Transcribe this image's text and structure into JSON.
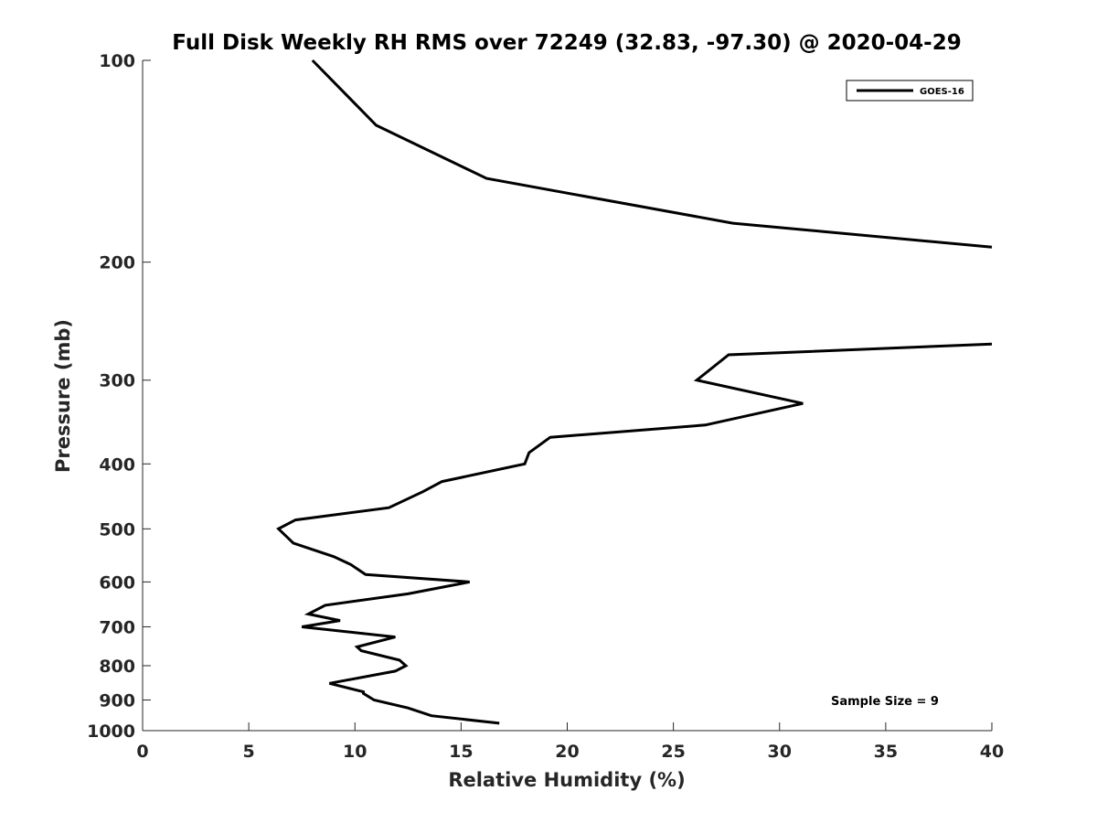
{
  "chart_data": {
    "type": "line",
    "title": "Full Disk Weekly RH RMS over 72249 (32.83, -97.30) @ 2020-04-29",
    "xlabel": "Relative Humidity (%)",
    "ylabel": "Pressure (mb)",
    "xlim": [
      0,
      40
    ],
    "ylim": [
      100,
      1000
    ],
    "y_scale": "log",
    "y_reversed": true,
    "x_ticks": [
      "0",
      "5",
      "10",
      "15",
      "20",
      "25",
      "30",
      "35",
      "40"
    ],
    "y_ticks": [
      "100",
      "200",
      "300",
      "400",
      "500",
      "600",
      "700",
      "800",
      "900",
      "1000"
    ],
    "grid": false,
    "legend_position": "top-right",
    "annotation": "Sample Size = 9",
    "series": [
      {
        "name": "GOES-16",
        "color": "#000000",
        "segments": [
          [
            {
              "p": 100,
              "rh": 8.0
            },
            {
              "p": 125,
              "rh": 11.0
            },
            {
              "p": 150,
              "rh": 16.2
            },
            {
              "p": 175,
              "rh": 27.8
            },
            {
              "p": 190,
              "rh": 40.0
            }
          ],
          [
            {
              "p": 265,
              "rh": 40.0
            },
            {
              "p": 275,
              "rh": 27.6
            },
            {
              "p": 300,
              "rh": 26.1
            },
            {
              "p": 325,
              "rh": 31.1
            },
            {
              "p": 350,
              "rh": 26.5
            },
            {
              "p": 365,
              "rh": 19.2
            },
            {
              "p": 385,
              "rh": 18.2
            },
            {
              "p": 400,
              "rh": 18.0
            },
            {
              "p": 425,
              "rh": 14.1
            },
            {
              "p": 440,
              "rh": 13.2
            },
            {
              "p": 465,
              "rh": 11.6
            },
            {
              "p": 485,
              "rh": 7.2
            },
            {
              "p": 500,
              "rh": 6.4
            },
            {
              "p": 525,
              "rh": 7.1
            },
            {
              "p": 550,
              "rh": 9.0
            },
            {
              "p": 565,
              "rh": 9.8
            },
            {
              "p": 585,
              "rh": 10.5
            },
            {
              "p": 600,
              "rh": 15.4
            },
            {
              "p": 625,
              "rh": 12.5
            },
            {
              "p": 650,
              "rh": 8.6
            },
            {
              "p": 670,
              "rh": 7.8
            },
            {
              "p": 685,
              "rh": 9.3
            },
            {
              "p": 700,
              "rh": 7.5
            },
            {
              "p": 725,
              "rh": 11.9
            },
            {
              "p": 750,
              "rh": 10.1
            },
            {
              "p": 760,
              "rh": 10.3
            },
            {
              "p": 785,
              "rh": 12.1
            },
            {
              "p": 800,
              "rh": 12.4
            },
            {
              "p": 815,
              "rh": 11.9
            },
            {
              "p": 850,
              "rh": 8.8
            },
            {
              "p": 875,
              "rh": 10.4
            },
            {
              "p": 880,
              "rh": 10.4
            },
            {
              "p": 900,
              "rh": 10.9
            },
            {
              "p": 925,
              "rh": 12.5
            },
            {
              "p": 950,
              "rh": 13.6
            },
            {
              "p": 975,
              "rh": 16.8
            }
          ]
        ]
      }
    ]
  }
}
